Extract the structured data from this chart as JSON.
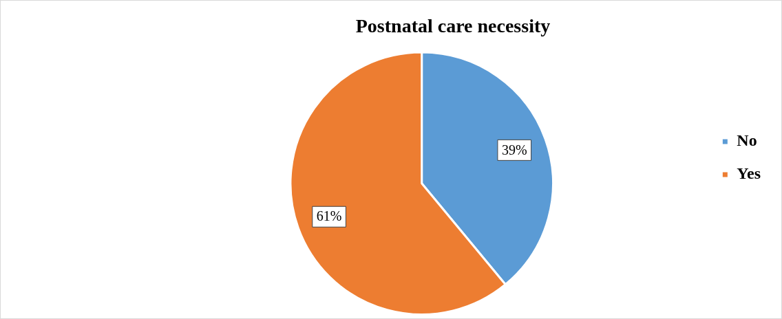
{
  "chart_data": {
    "type": "pie",
    "title": "Postnatal care necessity",
    "categories": [
      "No",
      "Yes"
    ],
    "values": [
      39,
      61
    ],
    "colors": [
      "#5b9bd5",
      "#ed7d31"
    ],
    "value_labels": [
      "39%",
      "61%"
    ],
    "legend": "right"
  }
}
